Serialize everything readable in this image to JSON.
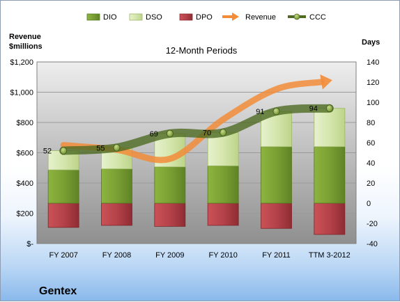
{
  "chart_data": {
    "type": "bar",
    "title": "12-Month Periods",
    "company": "Gentex",
    "categories": [
      "FY 2007",
      "FY 2008",
      "FY 2009",
      "FY 2010",
      "FY 2011",
      "TTM 3-2012"
    ],
    "left_axis": {
      "label_line1": "Revenue",
      "label_line2": "$millions",
      "ylim": [
        0,
        1200
      ],
      "ticks": [
        0,
        200,
        400,
        600,
        800,
        1000,
        1200
      ],
      "tick_labels": [
        "$-",
        "$200",
        "$400",
        "$600",
        "$800",
        "$1,000",
        "$1,200"
      ]
    },
    "right_axis": {
      "label": "Days",
      "ylim": [
        -40,
        140
      ],
      "ticks": [
        -40,
        -20,
        0,
        20,
        40,
        60,
        80,
        100,
        120,
        140
      ],
      "tick_labels": [
        "-40",
        "-20",
        "0",
        "20",
        "40",
        "60",
        "80",
        "100",
        "120",
        "140"
      ]
    },
    "grid": true,
    "legend_position": "top",
    "series": [
      {
        "name": "DIO",
        "axis": "right",
        "kind": "stacked-bar",
        "values": [
          33,
          34,
          36,
          37,
          56,
          56
        ],
        "color": "#7a9e36"
      },
      {
        "name": "DSO",
        "axis": "right",
        "kind": "stacked-bar",
        "values": [
          19,
          21,
          33,
          33,
          35,
          38
        ],
        "color": "#d6e8b0"
      },
      {
        "name": "DPO",
        "axis": "right",
        "kind": "negative-bar",
        "values": [
          -24,
          -22,
          -23,
          -22,
          -25,
          -31
        ],
        "color": "#b84448"
      },
      {
        "name": "Revenue",
        "axis": "left",
        "kind": "line",
        "values": [
          650,
          620,
          560,
          820,
          1020,
          1080
        ],
        "color": "#f28c38"
      },
      {
        "name": "CCC",
        "axis": "right",
        "kind": "line",
        "values": [
          52,
          55,
          69,
          70,
          91,
          94
        ],
        "color": "#4e6a23"
      }
    ],
    "data_labels": [
      "52",
      "55",
      "69",
      "70",
      "91",
      "94"
    ]
  }
}
